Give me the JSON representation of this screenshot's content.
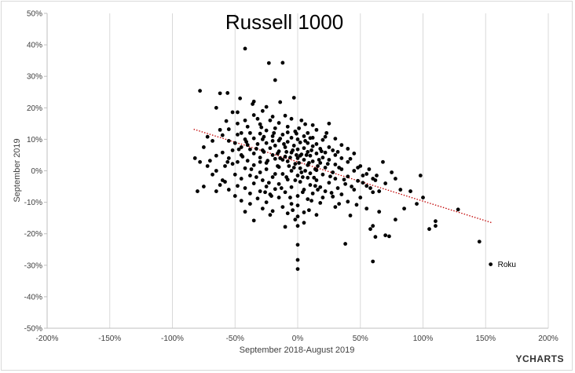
{
  "chart_data": {
    "type": "scatter",
    "title": "Russell 1000",
    "xlabel": "September 2018-August 2019",
    "ylabel": "September 2019",
    "xlim": [
      -200,
      200
    ],
    "ylim": [
      -50,
      50
    ],
    "x_ticks": [
      "-200%",
      "-150%",
      "-100%",
      "-50%",
      "0%",
      "50%",
      "100%",
      "150%",
      "200%"
    ],
    "y_ticks": [
      "-50%",
      "-40%",
      "-30%",
      "-20%",
      "-10%",
      "0%",
      "10%",
      "20%",
      "30%",
      "40%",
      "50%"
    ],
    "x_tick_values": [
      -200,
      -150,
      -100,
      -50,
      0,
      50,
      100,
      150,
      200
    ],
    "y_tick_values": [
      -50,
      -40,
      -30,
      -20,
      -10,
      0,
      10,
      20,
      30,
      40,
      50
    ],
    "grid": "vertical",
    "marker_color": "#000000",
    "trendline": {
      "style": "dotted",
      "color": "#c00000",
      "x": [
        -83,
        155
      ],
      "y": [
        13.2,
        -16.5
      ]
    },
    "annotations": [
      {
        "text": "Roku",
        "x": 154,
        "y": -29.7
      }
    ],
    "points": [
      [
        -42,
        38.8
      ],
      [
        -23,
        34.2
      ],
      [
        -12,
        34.3
      ],
      [
        -18,
        28.8
      ],
      [
        -78,
        25.4
      ],
      [
        -62,
        24.6
      ],
      [
        -56,
        24.7
      ],
      [
        -3,
        23.2
      ],
      [
        -46,
        23.0
      ],
      [
        -25,
        20.3
      ],
      [
        -35,
        22.0
      ],
      [
        -36,
        21.2
      ],
      [
        -65,
        20.0
      ],
      [
        -28,
        19.0
      ],
      [
        -14,
        21.8
      ],
      [
        -52,
        18.6
      ],
      [
        -48,
        18.6
      ],
      [
        -35,
        17.7
      ],
      [
        -20,
        17.2
      ],
      [
        -10,
        17.5
      ],
      [
        -32,
        16.5
      ],
      [
        -5,
        16.5
      ],
      [
        -57,
        15.8
      ],
      [
        -42,
        16.0
      ],
      [
        -22,
        16.0
      ],
      [
        3,
        16.0
      ],
      [
        -48,
        15.0
      ],
      [
        -15,
        15.2
      ],
      [
        -30,
        14.8
      ],
      [
        25,
        15.0
      ],
      [
        12,
        14.5
      ],
      [
        -8,
        14.0
      ],
      [
        -62,
        13.0
      ],
      [
        -55,
        13.2
      ],
      [
        -40,
        14.0
      ],
      [
        -18,
        13.5
      ],
      [
        -25,
        12.8
      ],
      [
        -2,
        12.5
      ],
      [
        -38,
        12.0
      ],
      [
        -45,
        12.0
      ],
      [
        8,
        12.0
      ],
      [
        -30,
        11.8
      ],
      [
        15,
        13.0
      ],
      [
        -12,
        11.5
      ],
      [
        5,
        11.0
      ],
      [
        -48,
        11.5
      ],
      [
        -60,
        11.3
      ],
      [
        -72,
        10.8
      ],
      [
        -20,
        11.0
      ],
      [
        -5,
        10.5
      ],
      [
        10,
        10.4
      ],
      [
        22,
        10.8
      ],
      [
        -35,
        10.3
      ],
      [
        -42,
        10.0
      ],
      [
        -28,
        10.0
      ],
      [
        0,
        10.0
      ],
      [
        -15,
        9.6
      ],
      [
        20,
        9.8
      ],
      [
        30,
        10.2
      ],
      [
        -55,
        9.5
      ],
      [
        -68,
        9.5
      ],
      [
        -8,
        9.2
      ],
      [
        2,
        9.0
      ],
      [
        8,
        8.8
      ],
      [
        15,
        8.5
      ],
      [
        -25,
        8.8
      ],
      [
        -32,
        8.5
      ],
      [
        -40,
        8.2
      ],
      [
        -50,
        8.8
      ],
      [
        35,
        8.2
      ],
      [
        25,
        7.5
      ],
      [
        -18,
        8.0
      ],
      [
        -3,
        8.0
      ],
      [
        12,
        7.8
      ],
      [
        -10,
        7.5
      ],
      [
        5,
        7.2
      ],
      [
        -22,
        7.2
      ],
      [
        -45,
        7.5
      ],
      [
        -75,
        7.5
      ],
      [
        18,
        7.0
      ],
      [
        -38,
        6.8
      ],
      [
        0,
        6.8
      ],
      [
        -28,
        6.5
      ],
      [
        28,
        6.5
      ],
      [
        40,
        7.0
      ],
      [
        -52,
        6.5
      ],
      [
        -15,
        6.2
      ],
      [
        8,
        6.0
      ],
      [
        -5,
        5.8
      ],
      [
        22,
        5.8
      ],
      [
        -60,
        5.8
      ],
      [
        -35,
        5.5
      ],
      [
        15,
        5.5
      ],
      [
        3,
        5.2
      ],
      [
        -20,
        5.0
      ],
      [
        30,
        5.0
      ],
      [
        -45,
        5.0
      ],
      [
        -65,
        4.8
      ],
      [
        10,
        4.8
      ],
      [
        -10,
        4.5
      ],
      [
        45,
        5.5
      ],
      [
        20,
        4.2
      ],
      [
        -30,
        4.2
      ],
      [
        0,
        4.0
      ],
      [
        -55,
        4.0
      ],
      [
        35,
        4.0
      ],
      [
        -82,
        4.0
      ],
      [
        -18,
        3.8
      ],
      [
        5,
        3.5
      ],
      [
        25,
        3.5
      ],
      [
        -40,
        3.2
      ],
      [
        -70,
        3.2
      ],
      [
        12,
        3.0
      ],
      [
        -8,
        3.0
      ],
      [
        -48,
        2.8
      ],
      [
        40,
        2.8
      ],
      [
        -25,
        2.5
      ],
      [
        18,
        2.5
      ],
      [
        -78,
        2.8
      ],
      [
        30,
        2.0
      ],
      [
        -2,
        2.2
      ],
      [
        -35,
        1.8
      ],
      [
        8,
        1.8
      ],
      [
        50,
        1.5
      ],
      [
        -58,
        1.5
      ],
      [
        -15,
        1.2
      ],
      [
        22,
        1.0
      ],
      [
        -42,
        0.8
      ],
      [
        2,
        0.8
      ],
      [
        35,
        0.5
      ],
      [
        -25,
        0.5
      ],
      [
        15,
        0.2
      ],
      [
        -5,
        0.0
      ],
      [
        45,
        0.0
      ],
      [
        -65,
        0.0
      ],
      [
        28,
        -0.5
      ],
      [
        -30,
        -0.5
      ],
      [
        10,
        -0.8
      ],
      [
        -12,
        -1.0
      ],
      [
        55,
        -1.0
      ],
      [
        -50,
        -1.2
      ],
      [
        20,
        -1.2
      ],
      [
        -38,
        -1.5
      ],
      [
        0,
        -1.5
      ],
      [
        40,
        -1.8
      ],
      [
        -20,
        -2.0
      ],
      [
        8,
        -2.2
      ],
      [
        30,
        -2.5
      ],
      [
        -45,
        -2.5
      ],
      [
        60,
        -2.5
      ],
      [
        -8,
        -2.8
      ],
      [
        15,
        -3.0
      ],
      [
        -28,
        -3.0
      ],
      [
        48,
        -3.2
      ],
      [
        -58,
        -3.5
      ],
      [
        2,
        -3.5
      ],
      [
        25,
        -3.8
      ],
      [
        -35,
        -4.0
      ],
      [
        -15,
        -4.2
      ],
      [
        38,
        -4.2
      ],
      [
        -62,
        -4.5
      ],
      [
        10,
        -4.5
      ],
      [
        -48,
        -4.8
      ],
      [
        55,
        -4.8
      ],
      [
        -25,
        -5.0
      ],
      [
        18,
        -5.2
      ],
      [
        -5,
        -5.2
      ],
      [
        -75,
        -5.0
      ],
      [
        -42,
        -5.5
      ],
      [
        32,
        -5.5
      ],
      [
        -18,
        -5.8
      ],
      [
        5,
        -6.0
      ],
      [
        -55,
        -6.0
      ],
      [
        45,
        -6.0
      ],
      [
        -30,
        -6.5
      ],
      [
        22,
        -6.5
      ],
      [
        -10,
        -6.8
      ],
      [
        60,
        -6.8
      ],
      [
        -65,
        -6.5
      ],
      [
        -80,
        -6.5
      ],
      [
        -38,
        -7.2
      ],
      [
        12,
        -7.2
      ],
      [
        -22,
        -7.5
      ],
      [
        35,
        -7.5
      ],
      [
        0,
        -8.0
      ],
      [
        -50,
        -8.0
      ],
      [
        28,
        -8.2
      ],
      [
        -15,
        -8.5
      ],
      [
        50,
        -8.5
      ],
      [
        -32,
        -8.8
      ],
      [
        8,
        -9.0
      ],
      [
        -45,
        -9.5
      ],
      [
        40,
        -9.8
      ],
      [
        -25,
        -10.0
      ],
      [
        18,
        -10.2
      ],
      [
        -5,
        -10.5
      ],
      [
        0,
        -11.0
      ],
      [
        -12,
        -11.5
      ],
      [
        30,
        -11.5
      ],
      [
        -28,
        -12.0
      ],
      [
        -20,
        -12.8
      ],
      [
        55,
        -12.0
      ],
      [
        -42,
        -13.0
      ],
      [
        5,
        -13.2
      ],
      [
        -8,
        -13.5
      ],
      [
        -22,
        -14.0
      ],
      [
        0,
        -14.5
      ],
      [
        15,
        -14.0
      ],
      [
        42,
        -14.2
      ],
      [
        65,
        -13.0
      ],
      [
        -35,
        -15.8
      ],
      [
        -2,
        -15.5
      ],
      [
        5,
        -16.5
      ],
      [
        60,
        -17.5
      ],
      [
        -10,
        -17.8
      ],
      [
        0,
        -17.5
      ],
      [
        0,
        -23.5
      ],
      [
        38,
        -23.2
      ],
      [
        0,
        -28.3
      ],
      [
        0,
        -31.2
      ],
      [
        60,
        -28.8
      ],
      [
        62,
        -21.0
      ],
      [
        70,
        -20.5
      ],
      [
        58,
        -18.5
      ],
      [
        73,
        -20.8
      ],
      [
        78,
        -15.5
      ],
      [
        85,
        -12.0
      ],
      [
        95,
        -10.5
      ],
      [
        105,
        -18.5
      ],
      [
        110,
        -17.5
      ],
      [
        110,
        -16.0
      ],
      [
        100,
        -8.5
      ],
      [
        90,
        -6.5
      ],
      [
        65,
        -6.5
      ],
      [
        82,
        -6.0
      ],
      [
        70,
        -4.0
      ],
      [
        78,
        -2.5
      ],
      [
        98,
        -1.5
      ],
      [
        75,
        -0.5
      ],
      [
        68,
        2.8
      ],
      [
        62,
        -3.0
      ],
      [
        52,
        -1.5
      ],
      [
        48,
        1.0
      ],
      [
        58,
        -5.5
      ],
      [
        52,
        -3.8
      ],
      [
        128,
        -12.3
      ],
      [
        145,
        -22.5
      ],
      [
        154,
        -29.7
      ],
      [
        -12,
        3.5
      ],
      [
        -4,
        6.5
      ],
      [
        6,
        9.5
      ],
      [
        -16,
        5.5
      ],
      [
        3,
        -0.5
      ],
      [
        14,
        0.5
      ],
      [
        -7,
        1.5
      ],
      [
        -20,
        9.5
      ],
      [
        -33,
        7.0
      ],
      [
        -24,
        3.2
      ],
      [
        -2,
        -3.0
      ],
      [
        9,
        2.5
      ],
      [
        -11,
        8.5
      ],
      [
        17,
        3.5
      ],
      [
        -27,
        6.0
      ],
      [
        -1,
        11.8
      ],
      [
        11,
        6.5
      ],
      [
        -6,
        4.2
      ],
      [
        19,
        6.2
      ],
      [
        -18,
        -1.0
      ],
      [
        -9,
        -2.0
      ],
      [
        24,
        2.2
      ],
      [
        -3,
        1.0
      ],
      [
        7,
        5.0
      ],
      [
        26,
        -1.8
      ],
      [
        33,
        1.0
      ],
      [
        -14,
        10.2
      ],
      [
        1,
        13.5
      ],
      [
        -30,
        2.8
      ],
      [
        13,
        -2.2
      ],
      [
        4,
        -6.8
      ],
      [
        -23,
        -3.8
      ],
      [
        16,
        -6.0
      ],
      [
        -37,
        0.5
      ],
      [
        -44,
        4.5
      ],
      [
        37,
        -2.8
      ],
      [
        42,
        3.8
      ],
      [
        -52,
        2.2
      ],
      [
        -19,
        12.0
      ],
      [
        6,
        14.8
      ],
      [
        -29,
        13.8
      ],
      [
        -41,
        9.2
      ],
      [
        23,
        12.0
      ],
      [
        -13,
        -5.5
      ],
      [
        -26,
        -6.8
      ],
      [
        11,
        -9.5
      ],
      [
        27,
        -7.0
      ],
      [
        -6,
        -8.5
      ],
      [
        32,
        6.0
      ],
      [
        -47,
        6.8
      ],
      [
        -33,
        -2.0
      ],
      [
        -56,
        2.8
      ],
      [
        20,
        -8.5
      ],
      [
        -16,
        1.5
      ],
      [
        2,
        4.8
      ],
      [
        -9,
        6.0
      ],
      [
        4,
        -2.0
      ],
      [
        14,
        -4.8
      ],
      [
        -21,
        -8.0
      ],
      [
        -38,
        -10.5
      ],
      [
        9,
        -12.5
      ],
      [
        33,
        -10.5
      ],
      [
        47,
        -10.8
      ],
      [
        -60,
        -3.0
      ],
      [
        -68,
        -1.2
      ],
      [
        -72,
        1.5
      ],
      [
        57,
        0.5
      ],
      [
        63,
        -1.5
      ],
      [
        43,
        -5.0
      ],
      [
        -4,
        -12.5
      ],
      [
        -14,
        4.0
      ],
      [
        6,
        0.0
      ],
      [
        1,
        2.5
      ],
      [
        -1,
        5.0
      ],
      [
        12,
        10.5
      ],
      [
        -8,
        12.2
      ],
      [
        -27,
        10.8
      ],
      [
        16,
        1.5
      ]
    ]
  }
}
